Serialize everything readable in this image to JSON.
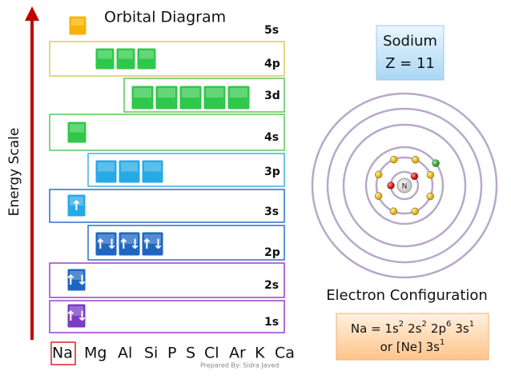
{
  "title": "Orbital Diagram",
  "axis_label": "Energy Scale",
  "sublevels": [
    {
      "label": "5s"
    },
    {
      "label": "4p"
    },
    {
      "label": "3d"
    },
    {
      "label": "4s"
    },
    {
      "label": "3p"
    },
    {
      "label": "3s",
      "electrons": [
        "↑"
      ]
    },
    {
      "label": "2p",
      "electrons": [
        "↑↓",
        "↑↓",
        "↑↓"
      ]
    },
    {
      "label": "2s",
      "electrons": [
        "↑↓"
      ]
    },
    {
      "label": "1s",
      "electrons": [
        "↑↓"
      ]
    }
  ],
  "elements": [
    "Na",
    "Mg",
    "Al",
    "Si",
    "P",
    "S",
    "Cl",
    "Ar",
    "K",
    "Ca"
  ],
  "credit": "Prepared By: Sidra Javed",
  "element_box": {
    "name": "Sodium",
    "number": "Z = 11"
  },
  "nucleus": "N",
  "config_title": "Electron Configuration",
  "config": {
    "line1": [
      {
        "base": "Na = 1s",
        "sup": "2"
      },
      {
        "base": "2s",
        "sup": "2"
      },
      {
        "base": "2p",
        "sup": "6"
      },
      {
        "base": "3s",
        "sup": "1"
      }
    ],
    "line2": [
      {
        "base": "or  [Ne] 3s",
        "sup": "1"
      }
    ]
  }
}
